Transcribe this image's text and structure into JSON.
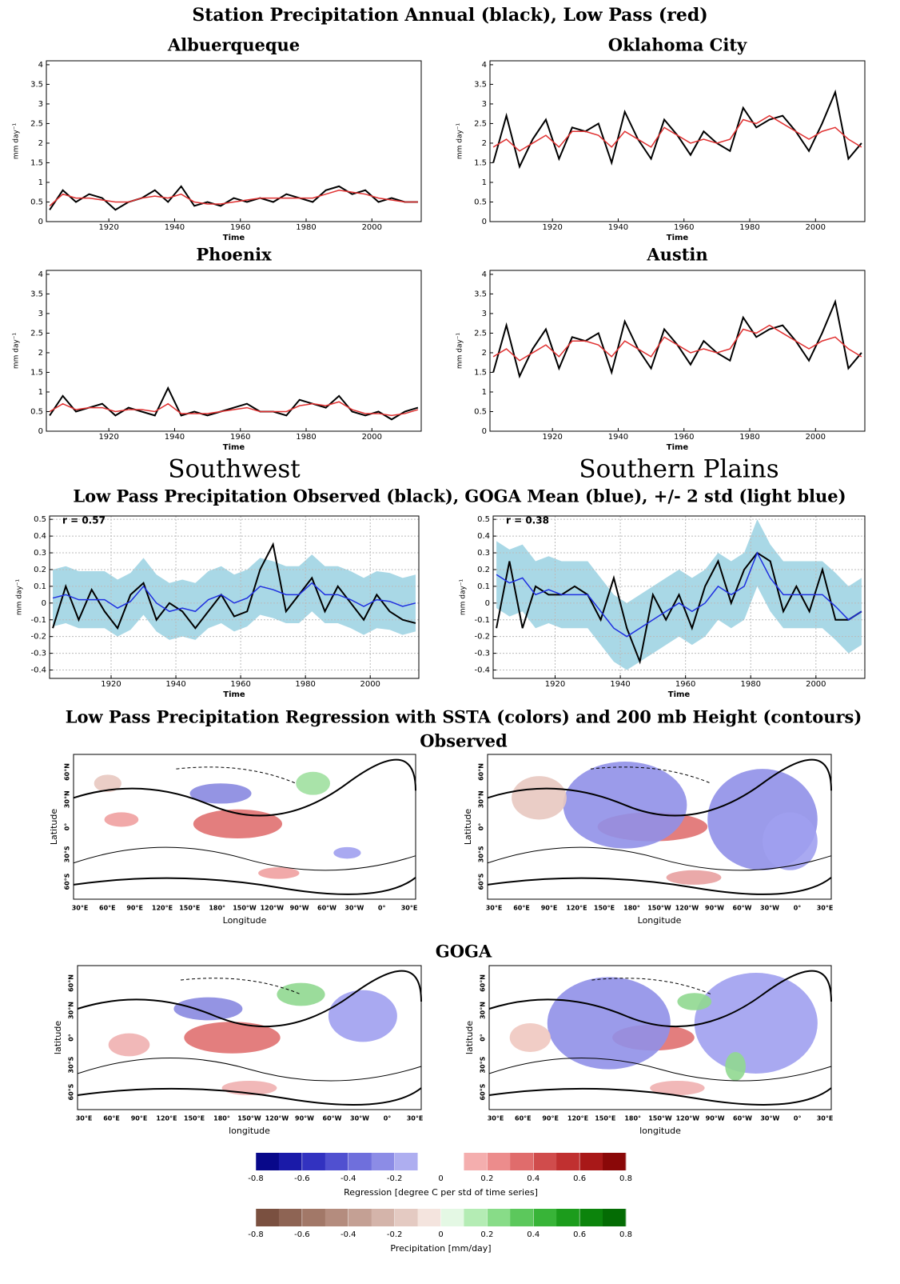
{
  "figure": {
    "title": "Station Precipitation Annual (black), Low Pass (red)",
    "band_title": "Low Pass Precipitation Observed (black), GOGA Mean (blue), +/- 2 std (light blue)",
    "map_title": "Low Pass Precipitation Regression with SSTA (colors) and 200 mb Height (contours)",
    "map_row_titles": [
      "Observed",
      "GOGA"
    ]
  },
  "chart_data": [
    {
      "type": "line",
      "title": "Albuerqueque",
      "xlabel": "Time",
      "ylabel": "mm day⁻¹",
      "x": [
        1902,
        1906,
        1910,
        1914,
        1918,
        1922,
        1926,
        1930,
        1934,
        1938,
        1942,
        1946,
        1950,
        1954,
        1958,
        1962,
        1966,
        1970,
        1974,
        1978,
        1982,
        1986,
        1990,
        1994,
        1998,
        2002,
        2006,
        2010,
        2014
      ],
      "xlim": [
        1901,
        2015
      ],
      "xticks": [
        1920,
        1940,
        1960,
        1980,
        2000
      ],
      "ylim": [
        0,
        4.1
      ],
      "yticks": [
        0,
        0.5,
        1,
        1.5,
        2,
        2.5,
        3,
        3.5,
        4
      ],
      "series": [
        {
          "color": "#000000",
          "values": [
            0.3,
            0.8,
            0.5,
            0.7,
            0.6,
            0.3,
            0.5,
            0.6,
            0.8,
            0.5,
            0.9,
            0.4,
            0.5,
            0.4,
            0.6,
            0.5,
            0.6,
            0.5,
            0.7,
            0.6,
            0.5,
            0.8,
            0.9,
            0.7,
            0.8,
            0.5,
            0.6,
            0.5,
            0.5
          ]
        },
        {
          "color": "#e03030",
          "values": [
            0.4,
            0.7,
            0.6,
            0.6,
            0.55,
            0.5,
            0.5,
            0.6,
            0.65,
            0.6,
            0.7,
            0.5,
            0.45,
            0.45,
            0.5,
            0.55,
            0.6,
            0.6,
            0.6,
            0.6,
            0.6,
            0.7,
            0.8,
            0.75,
            0.7,
            0.6,
            0.55,
            0.5,
            0.5
          ]
        }
      ]
    },
    {
      "type": "line",
      "title": "Oklahoma City",
      "xlabel": "Time",
      "ylabel": "mm day⁻¹",
      "x": [
        1902,
        1906,
        1910,
        1914,
        1918,
        1922,
        1926,
        1930,
        1934,
        1938,
        1942,
        1946,
        1950,
        1954,
        1958,
        1962,
        1966,
        1970,
        1974,
        1978,
        1982,
        1986,
        1990,
        1994,
        1998,
        2002,
        2006,
        2010,
        2014
      ],
      "xlim": [
        1901,
        2015
      ],
      "xticks": [
        1920,
        1940,
        1960,
        1980,
        2000
      ],
      "ylim": [
        0,
        4.1
      ],
      "yticks": [
        0,
        0.5,
        1,
        1.5,
        2,
        2.5,
        3,
        3.5,
        4
      ],
      "series": [
        {
          "color": "#000000",
          "values": [
            1.5,
            2.7,
            1.4,
            2.1,
            2.6,
            1.6,
            2.4,
            2.3,
            2.5,
            1.5,
            2.8,
            2.1,
            1.6,
            2.6,
            2.2,
            1.7,
            2.3,
            2.0,
            1.8,
            2.9,
            2.4,
            2.6,
            2.7,
            2.3,
            1.8,
            2.5,
            3.3,
            1.6,
            2.0
          ]
        },
        {
          "color": "#e03030",
          "values": [
            1.9,
            2.1,
            1.8,
            2.0,
            2.2,
            1.9,
            2.3,
            2.3,
            2.2,
            1.9,
            2.3,
            2.1,
            1.9,
            2.4,
            2.2,
            2.0,
            2.1,
            2.0,
            2.1,
            2.6,
            2.5,
            2.7,
            2.5,
            2.3,
            2.1,
            2.3,
            2.4,
            2.1,
            1.9
          ]
        }
      ]
    },
    {
      "type": "line",
      "title": "Phoenix",
      "xlabel": "Time",
      "ylabel": "mm day⁻¹",
      "x": [
        1902,
        1906,
        1910,
        1914,
        1918,
        1922,
        1926,
        1930,
        1934,
        1938,
        1942,
        1946,
        1950,
        1954,
        1958,
        1962,
        1966,
        1970,
        1974,
        1978,
        1982,
        1986,
        1990,
        1994,
        1998,
        2002,
        2006,
        2010,
        2014
      ],
      "xlim": [
        1901,
        2015
      ],
      "xticks": [
        1920,
        1940,
        1960,
        1980,
        2000
      ],
      "ylim": [
        0,
        4.1
      ],
      "yticks": [
        0,
        0.5,
        1,
        1.5,
        2,
        2.5,
        3,
        3.5,
        4
      ],
      "series": [
        {
          "color": "#000000",
          "values": [
            0.4,
            0.9,
            0.5,
            0.6,
            0.7,
            0.4,
            0.6,
            0.5,
            0.4,
            1.1,
            0.4,
            0.5,
            0.4,
            0.5,
            0.6,
            0.7,
            0.5,
            0.5,
            0.4,
            0.8,
            0.7,
            0.6,
            0.9,
            0.5,
            0.4,
            0.5,
            0.3,
            0.5,
            0.6
          ]
        },
        {
          "color": "#e03030",
          "values": [
            0.5,
            0.7,
            0.55,
            0.6,
            0.6,
            0.5,
            0.55,
            0.55,
            0.5,
            0.7,
            0.45,
            0.45,
            0.45,
            0.5,
            0.55,
            0.6,
            0.5,
            0.5,
            0.5,
            0.65,
            0.7,
            0.65,
            0.75,
            0.55,
            0.45,
            0.45,
            0.4,
            0.45,
            0.55
          ]
        }
      ]
    },
    {
      "type": "line",
      "title": "Austin",
      "xlabel": "Time",
      "ylabel": "mm day⁻¹",
      "x": [
        1902,
        1906,
        1910,
        1914,
        1918,
        1922,
        1926,
        1930,
        1934,
        1938,
        1942,
        1946,
        1950,
        1954,
        1958,
        1962,
        1966,
        1970,
        1974,
        1978,
        1982,
        1986,
        1990,
        1994,
        1998,
        2002,
        2006,
        2010,
        2014
      ],
      "xlim": [
        1901,
        2015
      ],
      "xticks": [
        1920,
        1940,
        1960,
        1980,
        2000
      ],
      "ylim": [
        0,
        4.1
      ],
      "yticks": [
        0,
        0.5,
        1,
        1.5,
        2,
        2.5,
        3,
        3.5,
        4
      ],
      "series": [
        {
          "color": "#000000",
          "values": [
            1.5,
            2.7,
            1.4,
            2.1,
            2.6,
            1.6,
            2.4,
            2.3,
            2.5,
            1.5,
            2.8,
            2.1,
            1.6,
            2.6,
            2.2,
            1.7,
            2.3,
            2.0,
            1.8,
            2.9,
            2.4,
            2.6,
            2.7,
            2.3,
            1.8,
            2.5,
            3.3,
            1.6,
            2.0
          ]
        },
        {
          "color": "#e03030",
          "values": [
            1.9,
            2.1,
            1.8,
            2.0,
            2.2,
            1.9,
            2.3,
            2.3,
            2.2,
            1.9,
            2.3,
            2.1,
            1.9,
            2.4,
            2.2,
            2.0,
            2.1,
            2.0,
            2.1,
            2.6,
            2.5,
            2.7,
            2.5,
            2.3,
            2.1,
            2.3,
            2.4,
            2.1,
            1.9
          ]
        }
      ]
    },
    {
      "type": "band",
      "title": "Southwest",
      "xlabel": "Time",
      "ylabel": "mm day⁻¹",
      "annotation": "r = 0.57",
      "x": [
        1902,
        1906,
        1910,
        1914,
        1918,
        1922,
        1926,
        1930,
        1934,
        1938,
        1942,
        1946,
        1950,
        1954,
        1958,
        1962,
        1966,
        1970,
        1974,
        1978,
        1982,
        1986,
        1990,
        1994,
        1998,
        2002,
        2006,
        2010,
        2014
      ],
      "xlim": [
        1901,
        2015
      ],
      "xticks": [
        1920,
        1940,
        1960,
        1980,
        2000
      ],
      "ylim": [
        -0.45,
        0.52
      ],
      "yticks": [
        -0.4,
        -0.3,
        -0.2,
        -0.1,
        0,
        0.1,
        0.2,
        0.3,
        0.4,
        0.5
      ],
      "band": {
        "color": "#a9d8e6",
        "upper": [
          0.2,
          0.22,
          0.19,
          0.19,
          0.19,
          0.14,
          0.18,
          0.27,
          0.17,
          0.12,
          0.14,
          0.12,
          0.19,
          0.22,
          0.17,
          0.2,
          0.27,
          0.25,
          0.22,
          0.22,
          0.29,
          0.22,
          0.22,
          0.19,
          0.15,
          0.19,
          0.18,
          0.15,
          0.17
        ],
        "lower": [
          -0.14,
          -0.12,
          -0.15,
          -0.15,
          -0.15,
          -0.2,
          -0.16,
          -0.07,
          -0.17,
          -0.22,
          -0.2,
          -0.22,
          -0.15,
          -0.12,
          -0.17,
          -0.14,
          -0.07,
          -0.09,
          -0.12,
          -0.12,
          -0.05,
          -0.12,
          -0.12,
          -0.15,
          -0.19,
          -0.15,
          -0.16,
          -0.19,
          -0.17
        ]
      },
      "series": [
        {
          "color": "#000000",
          "values": [
            -0.15,
            0.1,
            -0.1,
            0.08,
            -0.05,
            -0.15,
            0.05,
            0.12,
            -0.1,
            0,
            -0.05,
            -0.15,
            -0.05,
            0.05,
            -0.08,
            -0.05,
            0.2,
            0.35,
            -0.05,
            0.05,
            0.15,
            -0.05,
            0.1,
            0,
            -0.1,
            0.05,
            -0.05,
            -0.1,
            -0.12
          ]
        },
        {
          "color": "#1f2fe0",
          "values": [
            0.03,
            0.05,
            0.02,
            0.02,
            0.02,
            -0.03,
            0.01,
            0.1,
            0,
            -0.05,
            -0.03,
            -0.05,
            0.02,
            0.05,
            0,
            0.03,
            0.1,
            0.08,
            0.05,
            0.05,
            0.12,
            0.05,
            0.05,
            0.02,
            -0.02,
            0.02,
            0.01,
            -0.02,
            0
          ]
        }
      ]
    },
    {
      "type": "band",
      "title": "Southern Plains",
      "xlabel": "Time",
      "ylabel": "mm day⁻¹",
      "annotation": "r = 0.38",
      "x": [
        1902,
        1906,
        1910,
        1914,
        1918,
        1922,
        1926,
        1930,
        1934,
        1938,
        1942,
        1946,
        1950,
        1954,
        1958,
        1962,
        1966,
        1970,
        1974,
        1978,
        1982,
        1986,
        1990,
        1994,
        1998,
        2002,
        2006,
        2010,
        2014
      ],
      "xlim": [
        1901,
        2015
      ],
      "xticks": [
        1920,
        1940,
        1960,
        1980,
        2000
      ],
      "ylim": [
        -0.45,
        0.52
      ],
      "yticks": [
        -0.4,
        -0.3,
        -0.2,
        -0.1,
        0,
        0.1,
        0.2,
        0.3,
        0.4,
        0.5
      ],
      "band": {
        "color": "#a9d8e6",
        "upper": [
          0.37,
          0.32,
          0.35,
          0.25,
          0.28,
          0.25,
          0.25,
          0.25,
          0.15,
          0.05,
          0,
          0.05,
          0.1,
          0.15,
          0.2,
          0.15,
          0.2,
          0.3,
          0.25,
          0.3,
          0.5,
          0.35,
          0.25,
          0.25,
          0.25,
          0.25,
          0.18,
          0.1,
          0.15
        ],
        "lower": [
          -0.03,
          -0.08,
          -0.05,
          -0.15,
          -0.12,
          -0.15,
          -0.15,
          -0.15,
          -0.25,
          -0.35,
          -0.4,
          -0.35,
          -0.3,
          -0.25,
          -0.2,
          -0.25,
          -0.2,
          -0.1,
          -0.15,
          -0.1,
          0.1,
          -0.05,
          -0.15,
          -0.15,
          -0.15,
          -0.15,
          -0.22,
          -0.3,
          -0.25
        ]
      },
      "series": [
        {
          "color": "#000000",
          "values": [
            -0.15,
            0.25,
            -0.15,
            0.1,
            0.05,
            0.05,
            0.1,
            0.05,
            -0.1,
            0.15,
            -0.15,
            -0.35,
            0.05,
            -0.1,
            0.05,
            -0.15,
            0.1,
            0.25,
            0,
            0.2,
            0.3,
            0.25,
            -0.05,
            0.1,
            -0.05,
            0.2,
            -0.1,
            -0.1,
            -0.05
          ]
        },
        {
          "color": "#1f2fe0",
          "values": [
            0.17,
            0.12,
            0.15,
            0.05,
            0.08,
            0.05,
            0.05,
            0.05,
            -0.05,
            -0.15,
            -0.2,
            -0.15,
            -0.1,
            -0.05,
            0,
            -0.05,
            0,
            0.1,
            0.05,
            0.1,
            0.3,
            0.15,
            0.05,
            0.05,
            0.05,
            0.05,
            -0.02,
            -0.1,
            -0.05
          ]
        }
      ]
    }
  ],
  "maps": {
    "xticks": [
      "30°E",
      "60°E",
      "90°E",
      "120°E",
      "150°E",
      "180°",
      "150°W",
      "120°W",
      "90°W",
      "60°W",
      "30°W",
      "0°",
      "30°E"
    ],
    "yticks": [
      "60°N",
      "30°N",
      "0°",
      "30°S",
      "60°S"
    ],
    "panels": [
      {
        "xlabel": "Longitude",
        "ylabel": "Latitude"
      },
      {
        "xlabel": "Longitude",
        "ylabel": "Latitude"
      },
      {
        "xlabel": "longitude",
        "ylabel": "latitude"
      },
      {
        "xlabel": "longitude",
        "ylabel": "latitude"
      }
    ]
  },
  "colorbars": [
    {
      "label": "Regression [degree C per std of time series]",
      "ticks": [
        -0.8,
        -0.6,
        -0.4,
        -0.2,
        0,
        0.2,
        0.4,
        0.6,
        0.8
      ],
      "colors": [
        "#08088a",
        "#1a1aa8",
        "#3232c0",
        "#5050d0",
        "#6f6fdc",
        "#8c8ce6",
        "#aeaef0",
        "#ffffff",
        "#ffffff",
        "#f4aeae",
        "#ec8c8c",
        "#e06c6c",
        "#d04c4c",
        "#c03030",
        "#a81818",
        "#8a0808"
      ]
    },
    {
      "label": "Precipitation [mm/day]",
      "ticks": [
        -0.8,
        -0.6,
        -0.4,
        -0.2,
        0,
        0.2,
        0.4,
        0.6,
        0.8
      ],
      "colors": [
        "#7a5040",
        "#8e6454",
        "#a27868",
        "#b48c7e",
        "#c4a094",
        "#d4b4aa",
        "#e4cac2",
        "#f4e4de",
        "#e4f8e4",
        "#b4ecb4",
        "#88dc88",
        "#5cc85c",
        "#38b438",
        "#1c9c1c",
        "#0c840c",
        "#046c04"
      ]
    }
  ]
}
